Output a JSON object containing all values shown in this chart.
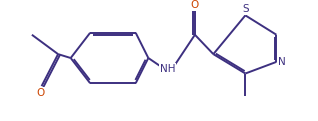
{
  "background_color": "#ffffff",
  "bond_color": "#3d3080",
  "color_O": "#cc4400",
  "color_N": "#3d3080",
  "color_S": "#3d3080",
  "lw": 1.4,
  "fs": 7.5,
  "fig_width": 3.18,
  "fig_height": 1.21,
  "dpi": 100,
  "xlim": [
    0,
    10
  ],
  "ylim": [
    0,
    3.8
  ]
}
